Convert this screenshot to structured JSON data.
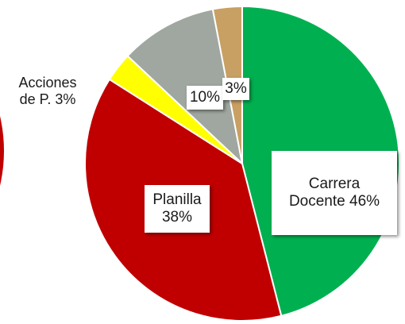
{
  "chart_data": {
    "type": "pie",
    "slices": [
      {
        "label_lines": [
          "Carrera",
          "Docente 46%"
        ],
        "value": 46,
        "color": "#00b050"
      },
      {
        "label_lines": [
          "Planilla",
          "38%"
        ],
        "value": 38,
        "color": "#c00000"
      },
      {
        "label_lines": [
          "Acciones",
          "de P. 3%"
        ],
        "value": 3,
        "color": "#ffff00"
      },
      {
        "label_lines": [
          "10%"
        ],
        "value": 10,
        "color": "#a0a7a0"
      },
      {
        "label_lines": [
          "3%"
        ],
        "value": 3,
        "color": "#c8a064"
      }
    ],
    "start_angle_deg": 0,
    "direction": "clockwise",
    "edge_partial_slice_color": "#c00000"
  }
}
